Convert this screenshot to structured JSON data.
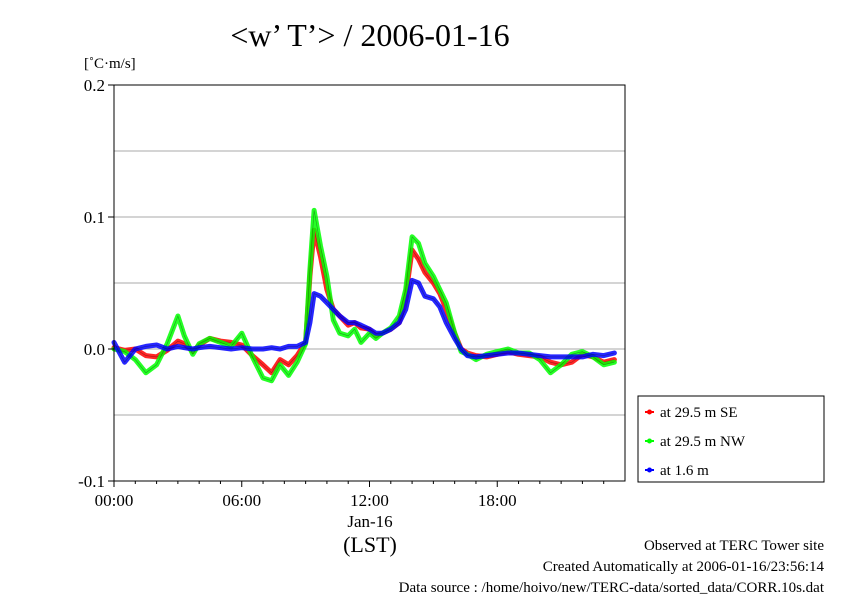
{
  "chart_data": {
    "type": "line",
    "title": "<w’ T’> / 2006-01-16",
    "ylabel": "[˚C·m/s]",
    "xlabel": "(LST)",
    "ylim": [
      -0.1,
      0.2
    ],
    "xlim": [
      0,
      24
    ],
    "y_ticks": [
      {
        "v": 0.2,
        "label": "0.2"
      },
      {
        "v": 0.1,
        "label": "0.1"
      },
      {
        "v": 0.0,
        "label": "0.0"
      },
      {
        "v": -0.1,
        "label": "-0.1"
      }
    ],
    "y_gridlines": [
      0.15,
      0.1,
      0.05,
      0.0,
      -0.05
    ],
    "x_ticks": [
      {
        "v": 0,
        "label": "00:00"
      },
      {
        "v": 6,
        "label": "06:00"
      },
      {
        "v": 12,
        "label": "12:00"
      },
      {
        "v": 18,
        "label": "18:00"
      }
    ],
    "x_date_label": "Jan-16",
    "grid": true,
    "legend_position": "right",
    "series": [
      {
        "name": "at 29.5 m SE",
        "color": "#ff0000",
        "x": [
          0,
          0.5,
          1,
          1.5,
          2,
          2.5,
          3,
          3.3,
          3.7,
          4,
          4.5,
          5,
          5.5,
          6,
          6.5,
          7,
          7.4,
          7.8,
          8.2,
          8.6,
          9,
          9.2,
          9.4,
          9.7,
          10,
          10.3,
          10.6,
          11,
          11.3,
          11.6,
          12,
          12.3,
          12.6,
          13,
          13.4,
          13.7,
          14,
          14.3,
          14.6,
          15,
          15.3,
          15.6,
          16,
          16.3,
          16.6,
          17,
          17.5,
          18,
          18.5,
          19,
          19.5,
          20,
          20.5,
          21,
          21.5,
          22,
          22.5,
          23,
          23.5
        ],
        "y": [
          0.001,
          -0.001,
          0.0,
          -0.005,
          -0.006,
          -0.001,
          0.006,
          0.004,
          -0.002,
          0.003,
          0.008,
          0.006,
          0.005,
          0.003,
          -0.005,
          -0.012,
          -0.018,
          -0.008,
          -0.012,
          -0.005,
          0.005,
          0.055,
          0.09,
          0.07,
          0.045,
          0.03,
          0.025,
          0.018,
          0.02,
          0.016,
          0.015,
          0.01,
          0.012,
          0.015,
          0.02,
          0.04,
          0.075,
          0.068,
          0.058,
          0.05,
          0.042,
          0.03,
          0.012,
          0.0,
          -0.003,
          -0.005,
          -0.006,
          -0.004,
          -0.002,
          -0.004,
          -0.005,
          -0.006,
          -0.01,
          -0.012,
          -0.01,
          -0.004,
          -0.006,
          -0.01,
          -0.008
        ]
      },
      {
        "name": "at 29.5 m NW",
        "color": "#00ff00",
        "x": [
          0,
          0.5,
          1,
          1.5,
          2,
          2.5,
          3,
          3.3,
          3.7,
          4,
          4.5,
          5,
          5.5,
          6,
          6.5,
          7,
          7.4,
          7.8,
          8.2,
          8.6,
          9,
          9.2,
          9.4,
          9.7,
          10,
          10.3,
          10.6,
          11,
          11.3,
          11.6,
          12,
          12.3,
          12.6,
          13,
          13.4,
          13.7,
          14,
          14.3,
          14.6,
          15,
          15.3,
          15.6,
          16,
          16.3,
          16.6,
          17,
          17.5,
          18,
          18.5,
          19,
          19.5,
          20,
          20.5,
          21,
          21.5,
          22,
          22.5,
          23,
          23.5
        ],
        "y": [
          0.0,
          -0.002,
          -0.008,
          -0.018,
          -0.012,
          0.004,
          0.025,
          0.01,
          -0.004,
          0.004,
          0.008,
          0.005,
          0.002,
          0.012,
          -0.006,
          -0.022,
          -0.024,
          -0.012,
          -0.02,
          -0.01,
          0.004,
          0.06,
          0.105,
          0.078,
          0.055,
          0.022,
          0.012,
          0.01,
          0.015,
          0.005,
          0.012,
          0.008,
          0.012,
          0.016,
          0.025,
          0.045,
          0.085,
          0.08,
          0.065,
          0.055,
          0.045,
          0.035,
          0.012,
          -0.002,
          -0.004,
          -0.008,
          -0.004,
          -0.002,
          0.0,
          -0.003,
          -0.003,
          -0.008,
          -0.018,
          -0.012,
          -0.004,
          -0.002,
          -0.006,
          -0.012,
          -0.01
        ]
      },
      {
        "name": "at 1.6 m",
        "color": "#0000ff",
        "x": [
          0,
          0.5,
          1,
          1.5,
          2,
          2.5,
          3,
          3.3,
          3.7,
          4,
          4.5,
          5,
          5.5,
          6,
          6.5,
          7,
          7.4,
          7.8,
          8.2,
          8.6,
          9,
          9.2,
          9.4,
          9.7,
          10,
          10.3,
          10.6,
          11,
          11.3,
          11.6,
          12,
          12.3,
          12.6,
          13,
          13.4,
          13.7,
          14,
          14.3,
          14.6,
          15,
          15.3,
          15.6,
          16,
          16.3,
          16.6,
          17,
          17.5,
          18,
          18.5,
          19,
          19.5,
          20,
          20.5,
          21,
          21.5,
          22,
          22.5,
          23,
          23.5
        ],
        "y": [
          0.005,
          -0.01,
          0.0,
          0.002,
          0.003,
          0.0,
          0.002,
          0.001,
          0.0,
          0.001,
          0.002,
          0.001,
          0.0,
          0.001,
          0.0,
          0.0,
          0.001,
          0.0,
          0.002,
          0.002,
          0.005,
          0.02,
          0.042,
          0.04,
          0.035,
          0.03,
          0.025,
          0.02,
          0.02,
          0.018,
          0.015,
          0.012,
          0.012,
          0.015,
          0.02,
          0.03,
          0.052,
          0.05,
          0.04,
          0.038,
          0.032,
          0.02,
          0.008,
          0.0,
          -0.005,
          -0.006,
          -0.005,
          -0.004,
          -0.003,
          -0.003,
          -0.004,
          -0.005,
          -0.006,
          -0.006,
          -0.006,
          -0.006,
          -0.004,
          -0.005,
          -0.003
        ]
      }
    ]
  },
  "footer": {
    "line1": "Observed at TERC Tower site",
    "line2": "Created Automatically at 2006-01-16/23:56:14",
    "line3": "Data source : /home/hoivo/new/TERC-data/sorted_data/CORR.10s.dat"
  }
}
